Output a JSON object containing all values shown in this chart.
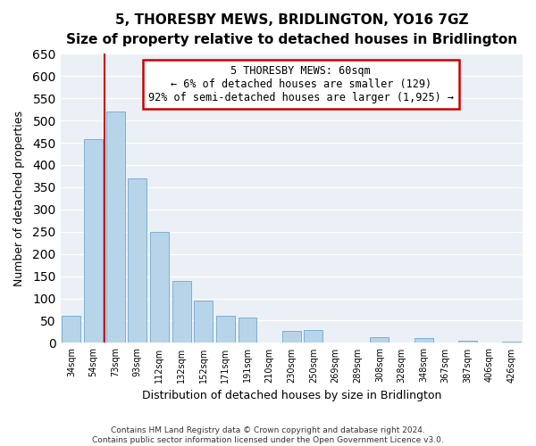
{
  "title": "5, THORESBY MEWS, BRIDLINGTON, YO16 7GZ",
  "subtitle": "Size of property relative to detached houses in Bridlington",
  "xlabel": "Distribution of detached houses by size in Bridlington",
  "ylabel": "Number of detached properties",
  "footer_line1": "Contains HM Land Registry data © Crown copyright and database right 2024.",
  "footer_line2": "Contains public sector information licensed under the Open Government Licence v3.0.",
  "categories": [
    "34sqm",
    "54sqm",
    "73sqm",
    "93sqm",
    "112sqm",
    "132sqm",
    "152sqm",
    "171sqm",
    "191sqm",
    "210sqm",
    "230sqm",
    "250sqm",
    "269sqm",
    "289sqm",
    "308sqm",
    "328sqm",
    "348sqm",
    "367sqm",
    "387sqm",
    "406sqm",
    "426sqm"
  ],
  "values": [
    62,
    458,
    520,
    370,
    250,
    140,
    95,
    62,
    58,
    0,
    27,
    28,
    0,
    0,
    12,
    0,
    10,
    0,
    5,
    0,
    3
  ],
  "bar_color": "#b8d4e8",
  "bar_edge_color": "#7bafd4",
  "vline_x": 1.5,
  "vline_color": "#cc0000",
  "ylim": [
    0,
    650
  ],
  "yticks": [
    0,
    50,
    100,
    150,
    200,
    250,
    300,
    350,
    400,
    450,
    500,
    550,
    600,
    650
  ],
  "annotation_title": "5 THORESBY MEWS: 60sqm",
  "annotation_line2": "← 6% of detached houses are smaller (129)",
  "annotation_line3": "92% of semi-detached houses are larger (1,925) →",
  "annotation_box_color": "#ffffff",
  "annotation_box_edge_color": "#cc0000",
  "bg_color": "#eaf0f6",
  "title_fontsize": 11,
  "subtitle_fontsize": 9.5
}
